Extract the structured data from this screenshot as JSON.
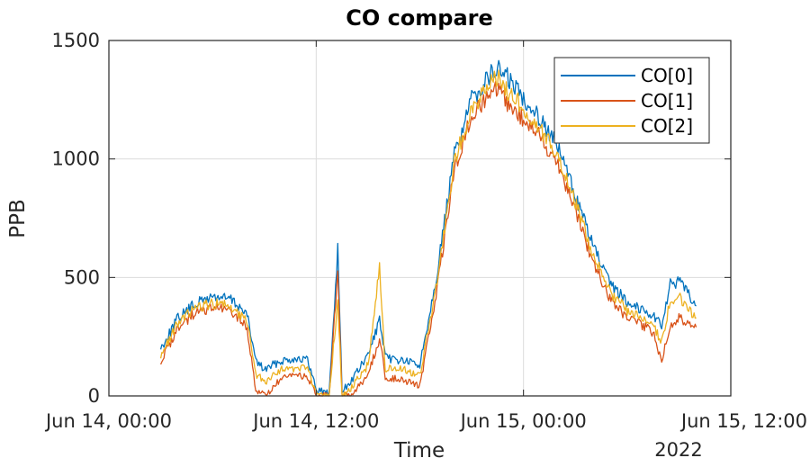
{
  "chart_data": {
    "type": "line",
    "title": "CO compare",
    "xlabel": "Time",
    "ylabel": "PPB",
    "x_tick_labels": [
      "Jun 14, 00:00",
      "Jun 14, 12:00",
      "Jun 15, 00:00",
      "Jun 15, 12:00"
    ],
    "x_secondary_label": "2022",
    "x_ticks": [
      "2022-06-14T00:00",
      "2022-06-14T12:00",
      "2022-06-15T00:00",
      "2022-06-15T12:00"
    ],
    "xlim": [
      "2022-06-14T00:00",
      "2022-06-15T12:00"
    ],
    "ylim": [
      0,
      1500
    ],
    "y_ticks": [
      0,
      500,
      1000,
      1500
    ],
    "grid": true,
    "legend": "top-right",
    "series": [
      {
        "name": "CO[0]",
        "color": "#0072BD",
        "x": [
          "2022-06-14T03:00",
          "2022-06-14T04:00",
          "2022-06-14T05:00",
          "2022-06-14T06:00",
          "2022-06-14T07:00",
          "2022-06-14T07:30",
          "2022-06-14T08:00",
          "2022-06-14T08:30",
          "2022-06-14T09:00",
          "2022-06-14T10:00",
          "2022-06-14T11:00",
          "2022-06-14T11:30",
          "2022-06-14T12:00",
          "2022-06-14T12:45",
          "2022-06-14T13:15",
          "2022-06-14T13:30",
          "2022-06-14T14:00",
          "2022-06-14T15:00",
          "2022-06-14T15:40",
          "2022-06-14T16:00",
          "2022-06-14T17:00",
          "2022-06-14T18:00",
          "2022-06-14T19:00",
          "2022-06-14T20:00",
          "2022-06-14T21:00",
          "2022-06-14T22:00",
          "2022-06-14T22:30",
          "2022-06-14T23:00",
          "2022-06-15T00:00",
          "2022-06-15T01:00",
          "2022-06-15T02:00",
          "2022-06-15T03:00",
          "2022-06-15T04:00",
          "2022-06-15T05:00",
          "2022-06-15T06:00",
          "2022-06-15T07:00",
          "2022-06-15T07:30",
          "2022-06-15T08:00",
          "2022-06-15T08:30",
          "2022-06-15T09:00",
          "2022-06-15T09:30",
          "2022-06-15T10:00"
        ],
        "values": [
          200,
          330,
          390,
          420,
          410,
          380,
          340,
          150,
          110,
          150,
          160,
          150,
          30,
          10,
          620,
          20,
          60,
          170,
          320,
          160,
          150,
          130,
          520,
          1020,
          1250,
          1350,
          1380,
          1350,
          1260,
          1170,
          1050,
          850,
          640,
          470,
          400,
          360,
          340,
          300,
          470,
          480,
          440,
          380
        ]
      },
      {
        "name": "CO[1]",
        "color": "#D95319",
        "x": [
          "2022-06-14T03:00",
          "2022-06-14T04:00",
          "2022-06-14T05:00",
          "2022-06-14T06:00",
          "2022-06-14T07:00",
          "2022-06-14T07:30",
          "2022-06-14T08:00",
          "2022-06-14T08:30",
          "2022-06-14T09:00",
          "2022-06-14T10:00",
          "2022-06-14T11:00",
          "2022-06-14T11:30",
          "2022-06-14T12:00",
          "2022-06-14T12:45",
          "2022-06-14T13:15",
          "2022-06-14T13:30",
          "2022-06-14T14:00",
          "2022-06-14T15:00",
          "2022-06-14T15:40",
          "2022-06-14T16:00",
          "2022-06-14T17:00",
          "2022-06-14T18:00",
          "2022-06-14T19:00",
          "2022-06-14T20:00",
          "2022-06-14T21:00",
          "2022-06-14T22:00",
          "2022-06-14T22:30",
          "2022-06-14T23:00",
          "2022-06-15T00:00",
          "2022-06-15T01:00",
          "2022-06-15T02:00",
          "2022-06-15T03:00",
          "2022-06-15T04:00",
          "2022-06-15T05:00",
          "2022-06-15T06:00",
          "2022-06-15T07:00",
          "2022-06-15T07:30",
          "2022-06-15T08:00",
          "2022-06-15T08:30",
          "2022-06-15T09:00",
          "2022-06-15T09:30",
          "2022-06-15T10:00"
        ],
        "values": [
          140,
          290,
          350,
          370,
          360,
          330,
          280,
          30,
          0,
          70,
          90,
          80,
          0,
          0,
          520,
          0,
          0,
          90,
          240,
          80,
          70,
          40,
          450,
          960,
          1180,
          1270,
          1290,
          1240,
          1170,
          1090,
          980,
          790,
          570,
          410,
          330,
          290,
          270,
          150,
          300,
          330,
          310,
          290
        ]
      },
      {
        "name": "CO[2]",
        "color": "#EDB120",
        "x": [
          "2022-06-14T03:00",
          "2022-06-14T04:00",
          "2022-06-14T05:00",
          "2022-06-14T06:00",
          "2022-06-14T07:00",
          "2022-06-14T07:30",
          "2022-06-14T08:00",
          "2022-06-14T08:30",
          "2022-06-14T09:00",
          "2022-06-14T10:00",
          "2022-06-14T11:00",
          "2022-06-14T11:30",
          "2022-06-14T12:00",
          "2022-06-14T12:45",
          "2022-06-14T13:15",
          "2022-06-14T13:30",
          "2022-06-14T14:00",
          "2022-06-14T15:00",
          "2022-06-14T15:40",
          "2022-06-14T16:00",
          "2022-06-14T17:00",
          "2022-06-14T18:00",
          "2022-06-14T19:00",
          "2022-06-14T20:00",
          "2022-06-14T21:00",
          "2022-06-14T22:00",
          "2022-06-14T22:30",
          "2022-06-14T23:00",
          "2022-06-15T00:00",
          "2022-06-15T01:00",
          "2022-06-15T02:00",
          "2022-06-15T03:00",
          "2022-06-15T04:00",
          "2022-06-15T05:00",
          "2022-06-15T06:00",
          "2022-06-15T07:00",
          "2022-06-15T07:30",
          "2022-06-15T08:00",
          "2022-06-15T08:30",
          "2022-06-15T09:00",
          "2022-06-15T09:30",
          "2022-06-15T10:00"
        ],
        "values": [
          170,
          310,
          370,
          390,
          380,
          350,
          310,
          90,
          60,
          110,
          120,
          110,
          10,
          0,
          400,
          0,
          30,
          130,
          540,
          120,
          110,
          90,
          480,
          990,
          1210,
          1310,
          1340,
          1290,
          1220,
          1120,
          1010,
          820,
          600,
          440,
          360,
          320,
          300,
          230,
          400,
          420,
          370,
          330
        ]
      }
    ]
  }
}
